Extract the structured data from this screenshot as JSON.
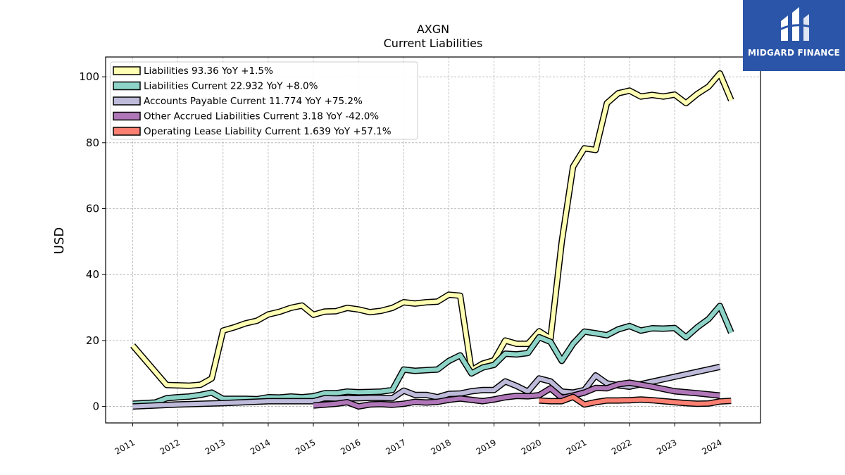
{
  "logo": {
    "text": "MIDGARD FINANCE",
    "background": "#2a55a8"
  },
  "chart_data": {
    "type": "line",
    "title": "AXGN",
    "subtitle": "Current  Liabilities",
    "ylabel": "USD",
    "xlabel": "",
    "ylim": [
      -5,
      106
    ],
    "xlim": [
      2010.4,
      2024.9
    ],
    "yticks": [
      0,
      20,
      40,
      60,
      80,
      100
    ],
    "xticks": [
      2011,
      2012,
      2013,
      2014,
      2015,
      2016,
      2017,
      2018,
      2019,
      2020,
      2021,
      2022,
      2023,
      2024
    ],
    "grid": true,
    "legend_position": "top-left",
    "series": [
      {
        "name": "Liabilities",
        "legend": "Liabilities  93.36 YoY +1.5%",
        "color": "#ffffb3",
        "points": [
          [
            2011.0,
            18.5
          ],
          [
            2011.75,
            6.5
          ],
          [
            2012.0,
            6.4
          ],
          [
            2012.25,
            6.3
          ],
          [
            2012.5,
            6.6
          ],
          [
            2012.75,
            8.5
          ],
          [
            2013.0,
            23.0
          ],
          [
            2013.25,
            24.0
          ],
          [
            2013.5,
            25.2
          ],
          [
            2013.75,
            26.0
          ],
          [
            2014.0,
            27.9
          ],
          [
            2014.25,
            28.7
          ],
          [
            2014.5,
            29.9
          ],
          [
            2014.75,
            30.6
          ],
          [
            2015.0,
            27.8
          ],
          [
            2015.25,
            28.8
          ],
          [
            2015.5,
            28.9
          ],
          [
            2015.75,
            29.9
          ],
          [
            2016.0,
            29.4
          ],
          [
            2016.25,
            28.6
          ],
          [
            2016.5,
            29.0
          ],
          [
            2016.75,
            29.9
          ],
          [
            2017.0,
            31.6
          ],
          [
            2017.25,
            31.2
          ],
          [
            2017.5,
            31.6
          ],
          [
            2017.75,
            31.8
          ],
          [
            2018.0,
            33.9
          ],
          [
            2018.25,
            33.6
          ],
          [
            2018.5,
            11.0
          ],
          [
            2018.75,
            13.0
          ],
          [
            2019.0,
            14.0
          ],
          [
            2019.25,
            20.0
          ],
          [
            2019.5,
            19.0
          ],
          [
            2019.75,
            19.0
          ],
          [
            2020.0,
            22.8
          ],
          [
            2020.25,
            20.6
          ],
          [
            2020.5,
            50.0
          ],
          [
            2020.75,
            72.7
          ],
          [
            2021.0,
            78.3
          ],
          [
            2021.25,
            77.8
          ],
          [
            2021.5,
            92.0
          ],
          [
            2021.75,
            95.0
          ],
          [
            2022.0,
            95.8
          ],
          [
            2022.25,
            94.0
          ],
          [
            2022.5,
            94.5
          ],
          [
            2022.75,
            94.0
          ],
          [
            2023.0,
            94.6
          ],
          [
            2023.25,
            92.0
          ],
          [
            2023.5,
            94.8
          ],
          [
            2023.75,
            97.0
          ],
          [
            2024.0,
            101.0
          ],
          [
            2024.25,
            92.9
          ]
        ]
      },
      {
        "name": "Liabilities Current",
        "legend": "Liabilities Current  22.932 YoY +8.0%",
        "color": "#8dd3c7",
        "points": [
          [
            2011.0,
            0.8
          ],
          [
            2011.5,
            1.2
          ],
          [
            2011.75,
            2.5
          ],
          [
            2012.0,
            2.8
          ],
          [
            2012.25,
            3.0
          ],
          [
            2012.5,
            3.5
          ],
          [
            2012.75,
            4.2
          ],
          [
            2013.0,
            2.3
          ],
          [
            2013.5,
            2.3
          ],
          [
            2013.75,
            2.2
          ],
          [
            2014.0,
            2.8
          ],
          [
            2014.25,
            2.7
          ],
          [
            2014.5,
            3.0
          ],
          [
            2014.75,
            2.8
          ],
          [
            2015.0,
            3.1
          ],
          [
            2015.25,
            4.0
          ],
          [
            2015.5,
            4.0
          ],
          [
            2015.75,
            4.5
          ],
          [
            2016.0,
            4.3
          ],
          [
            2016.25,
            4.4
          ],
          [
            2016.5,
            4.5
          ],
          [
            2016.75,
            5.0
          ],
          [
            2017.0,
            11.2
          ],
          [
            2017.25,
            10.8
          ],
          [
            2017.5,
            11.0
          ],
          [
            2017.75,
            11.2
          ],
          [
            2018.0,
            13.8
          ],
          [
            2018.25,
            15.5
          ],
          [
            2018.5,
            10.0
          ],
          [
            2018.75,
            11.8
          ],
          [
            2019.0,
            12.6
          ],
          [
            2019.25,
            16.0
          ],
          [
            2019.5,
            15.8
          ],
          [
            2019.75,
            16.2
          ],
          [
            2020.0,
            21.0
          ],
          [
            2020.25,
            19.6
          ],
          [
            2020.5,
            13.8
          ],
          [
            2020.75,
            19.0
          ],
          [
            2021.0,
            22.7
          ],
          [
            2021.25,
            22.2
          ],
          [
            2021.5,
            21.6
          ],
          [
            2021.75,
            23.4
          ],
          [
            2022.0,
            24.4
          ],
          [
            2022.25,
            23.0
          ],
          [
            2022.5,
            23.7
          ],
          [
            2022.75,
            23.6
          ],
          [
            2023.0,
            23.8
          ],
          [
            2023.25,
            21.0
          ],
          [
            2023.5,
            24.0
          ],
          [
            2023.75,
            26.5
          ],
          [
            2024.0,
            30.5
          ],
          [
            2024.25,
            22.4
          ]
        ]
      },
      {
        "name": "Accounts Payable Current",
        "legend": "Accounts Payable Current  11.774 YoY +75.2%",
        "color": "#bebada",
        "points": [
          [
            2011.0,
            0.0
          ],
          [
            2012.0,
            0.6
          ],
          [
            2013.0,
            1.0
          ],
          [
            2014.0,
            1.6
          ],
          [
            2015.0,
            1.6
          ],
          [
            2015.25,
            2.5
          ],
          [
            2015.5,
            2.4
          ],
          [
            2015.75,
            2.5
          ],
          [
            2016.0,
            2.5
          ],
          [
            2016.25,
            2.6
          ],
          [
            2016.5,
            2.6
          ],
          [
            2016.75,
            2.5
          ],
          [
            2017.0,
            4.8
          ],
          [
            2017.25,
            3.5
          ],
          [
            2017.5,
            3.5
          ],
          [
            2017.75,
            2.8
          ],
          [
            2018.0,
            3.8
          ],
          [
            2018.25,
            3.9
          ],
          [
            2018.5,
            4.6
          ],
          [
            2018.75,
            5.0
          ],
          [
            2019.0,
            5.0
          ],
          [
            2019.25,
            7.6
          ],
          [
            2019.5,
            6.2
          ],
          [
            2019.75,
            4.5
          ],
          [
            2020.0,
            8.5
          ],
          [
            2020.25,
            7.6
          ],
          [
            2020.5,
            4.5
          ],
          [
            2020.75,
            4.2
          ],
          [
            2021.0,
            5.0
          ],
          [
            2021.25,
            9.4
          ],
          [
            2021.5,
            7.0
          ],
          [
            2021.75,
            6.4
          ],
          [
            2022.0,
            6.0
          ],
          [
            2022.5,
            7.5
          ],
          [
            2023.0,
            9.0
          ],
          [
            2023.5,
            10.5
          ],
          [
            2024.0,
            12.0
          ]
        ]
      },
      {
        "name": "Other Accrued Liabilities Current",
        "legend": "Other Accrued Liabilities Current  3.18 YoY -42.0%",
        "color": "#b077b8",
        "points": [
          [
            2015.0,
            0.3
          ],
          [
            2015.5,
            0.8
          ],
          [
            2015.75,
            1.3
          ],
          [
            2016.0,
            0.0
          ],
          [
            2016.25,
            0.6
          ],
          [
            2016.5,
            0.7
          ],
          [
            2016.75,
            0.5
          ],
          [
            2017.0,
            0.8
          ],
          [
            2017.25,
            1.4
          ],
          [
            2017.5,
            1.2
          ],
          [
            2017.75,
            1.4
          ],
          [
            2018.0,
            2.0
          ],
          [
            2018.25,
            2.4
          ],
          [
            2018.5,
            2.0
          ],
          [
            2018.75,
            1.6
          ],
          [
            2019.0,
            2.1
          ],
          [
            2019.25,
            2.8
          ],
          [
            2019.5,
            3.2
          ],
          [
            2019.75,
            3.1
          ],
          [
            2020.0,
            3.4
          ],
          [
            2020.25,
            5.5
          ],
          [
            2020.5,
            2.6
          ],
          [
            2020.75,
            3.3
          ],
          [
            2021.0,
            4.2
          ],
          [
            2021.25,
            5.6
          ],
          [
            2021.5,
            5.5
          ],
          [
            2021.75,
            6.7
          ],
          [
            2022.0,
            7.2
          ],
          [
            2022.5,
            6.0
          ],
          [
            2023.0,
            4.6
          ],
          [
            2023.5,
            4.0
          ],
          [
            2024.0,
            3.3
          ]
        ]
      },
      {
        "name": "Operating Lease Liability Current",
        "legend": "Operating Lease Liability Current  1.639 YoY +57.1%",
        "color": "#fb8072",
        "points": [
          [
            2020.0,
            1.8
          ],
          [
            2020.25,
            1.6
          ],
          [
            2020.5,
            1.6
          ],
          [
            2020.75,
            2.9
          ],
          [
            2021.0,
            0.6
          ],
          [
            2021.25,
            1.3
          ],
          [
            2021.5,
            1.8
          ],
          [
            2021.75,
            1.8
          ],
          [
            2022.0,
            1.9
          ],
          [
            2022.25,
            2.1
          ],
          [
            2022.5,
            1.9
          ],
          [
            2022.75,
            1.6
          ],
          [
            2023.0,
            1.3
          ],
          [
            2023.25,
            1.0
          ],
          [
            2023.5,
            0.8
          ],
          [
            2023.75,
            0.9
          ],
          [
            2024.0,
            1.5
          ],
          [
            2024.25,
            1.7
          ]
        ]
      }
    ]
  }
}
